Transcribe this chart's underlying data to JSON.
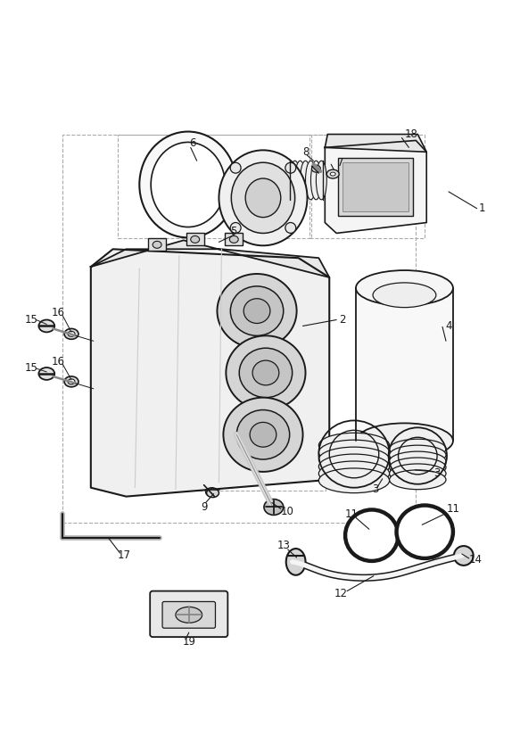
{
  "bg": "#ffffff",
  "lc": "#1a1a1a",
  "dlc": "#aaaaaa",
  "fig_w": 5.83,
  "fig_h": 8.24,
  "dpi": 100
}
